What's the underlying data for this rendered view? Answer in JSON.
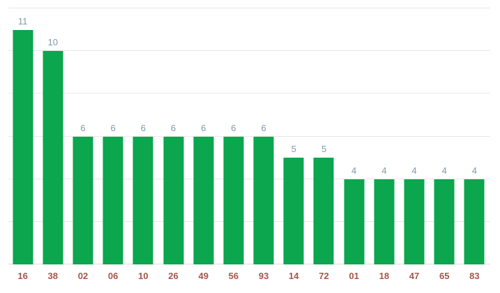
{
  "chart_data": {
    "type": "bar",
    "title": "",
    "xlabel": "",
    "ylabel": "",
    "categories": [
      "16",
      "38",
      "02",
      "06",
      "10",
      "26",
      "49",
      "56",
      "93",
      "14",
      "72",
      "01",
      "18",
      "47",
      "65",
      "83"
    ],
    "values": [
      11,
      10,
      6,
      6,
      6,
      6,
      6,
      6,
      6,
      5,
      5,
      4,
      4,
      4,
      4,
      4
    ],
    "annotations": [
      "11",
      "10",
      "6",
      "6",
      "6",
      "6",
      "6",
      "6",
      "6",
      "5",
      "5",
      "4",
      "4",
      "4",
      "4",
      "4"
    ],
    "ylim": [
      0,
      12.4
    ],
    "grid_step": 2,
    "grid": "on",
    "legend": "none",
    "y_axis_labels_visible": false,
    "bar_color": "#0ba64e",
    "annotation_color": "#7e99ad",
    "axis_label_color": "#a5564a",
    "gridline_color": "#e7e7e7",
    "baseline_color": "#dcdcdc",
    "background_color": "#ffffff"
  }
}
